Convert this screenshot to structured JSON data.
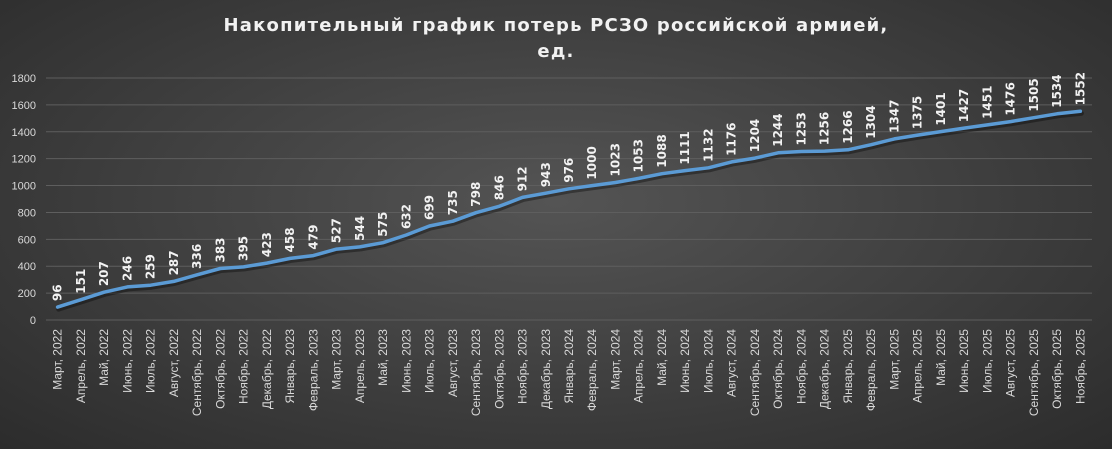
{
  "chart_data": {
    "type": "line",
    "title_line1": "Накопительный график потерь РСЗО российской армией,",
    "title_line2": "ед.",
    "xlabel": "",
    "ylabel": "",
    "ylim": [
      0,
      1800
    ],
    "yticks": [
      0,
      200,
      400,
      600,
      800,
      1000,
      1200,
      1400,
      1600,
      1800
    ],
    "grid": true,
    "legend": "none",
    "line_color": "#5b9bd5",
    "categories": [
      "Март, 2022",
      "Апрель, 2022",
      "Май, 2022",
      "Июнь, 2022",
      "Июль, 2022",
      "Август, 2022",
      "Сентябрь, 2022",
      "Октябрь, 2022",
      "Ноябрь, 2022",
      "Декабрь, 2022",
      "Январь, 2023",
      "Февраль, 2023",
      "Март, 2023",
      "Апрель, 2023",
      "Май, 2023",
      "Июнь, 2023",
      "Июль, 2023",
      "Август, 2023",
      "Сентябрь, 2023",
      "Октябрь, 2023",
      "Ноябрь, 2023",
      "Декабрь, 2023",
      "Январь, 2024",
      "Февраль, 2024",
      "Март, 2024",
      "Апрель, 2024",
      "Май, 2024",
      "Июнь, 2024",
      "Июль, 2024",
      "Август, 2024",
      "Сентябрь, 2024",
      "Октябрь, 2024",
      "Ноябрь, 2024",
      "Декабрь, 2024",
      "Январь, 2025",
      "Февраль, 2025",
      "Март, 2025",
      "Апрель, 2025",
      "Май, 2025",
      "Июнь, 2025",
      "Июль, 2025",
      "Август, 2025",
      "Сентябрь, 2025",
      "Октябрь, 2025",
      "Ноябрь, 2025"
    ],
    "values": [
      96,
      151,
      207,
      246,
      259,
      287,
      336,
      383,
      395,
      423,
      458,
      479,
      527,
      544,
      575,
      632,
      699,
      735,
      798,
      846,
      912,
      943,
      976,
      1000,
      1023,
      1053,
      1088,
      1111,
      1132,
      1176,
      1204,
      1244,
      1253,
      1256,
      1266,
      1304,
      1347,
      1375,
      1401,
      1427,
      1451,
      1476,
      1505,
      1534,
      1552
    ]
  }
}
